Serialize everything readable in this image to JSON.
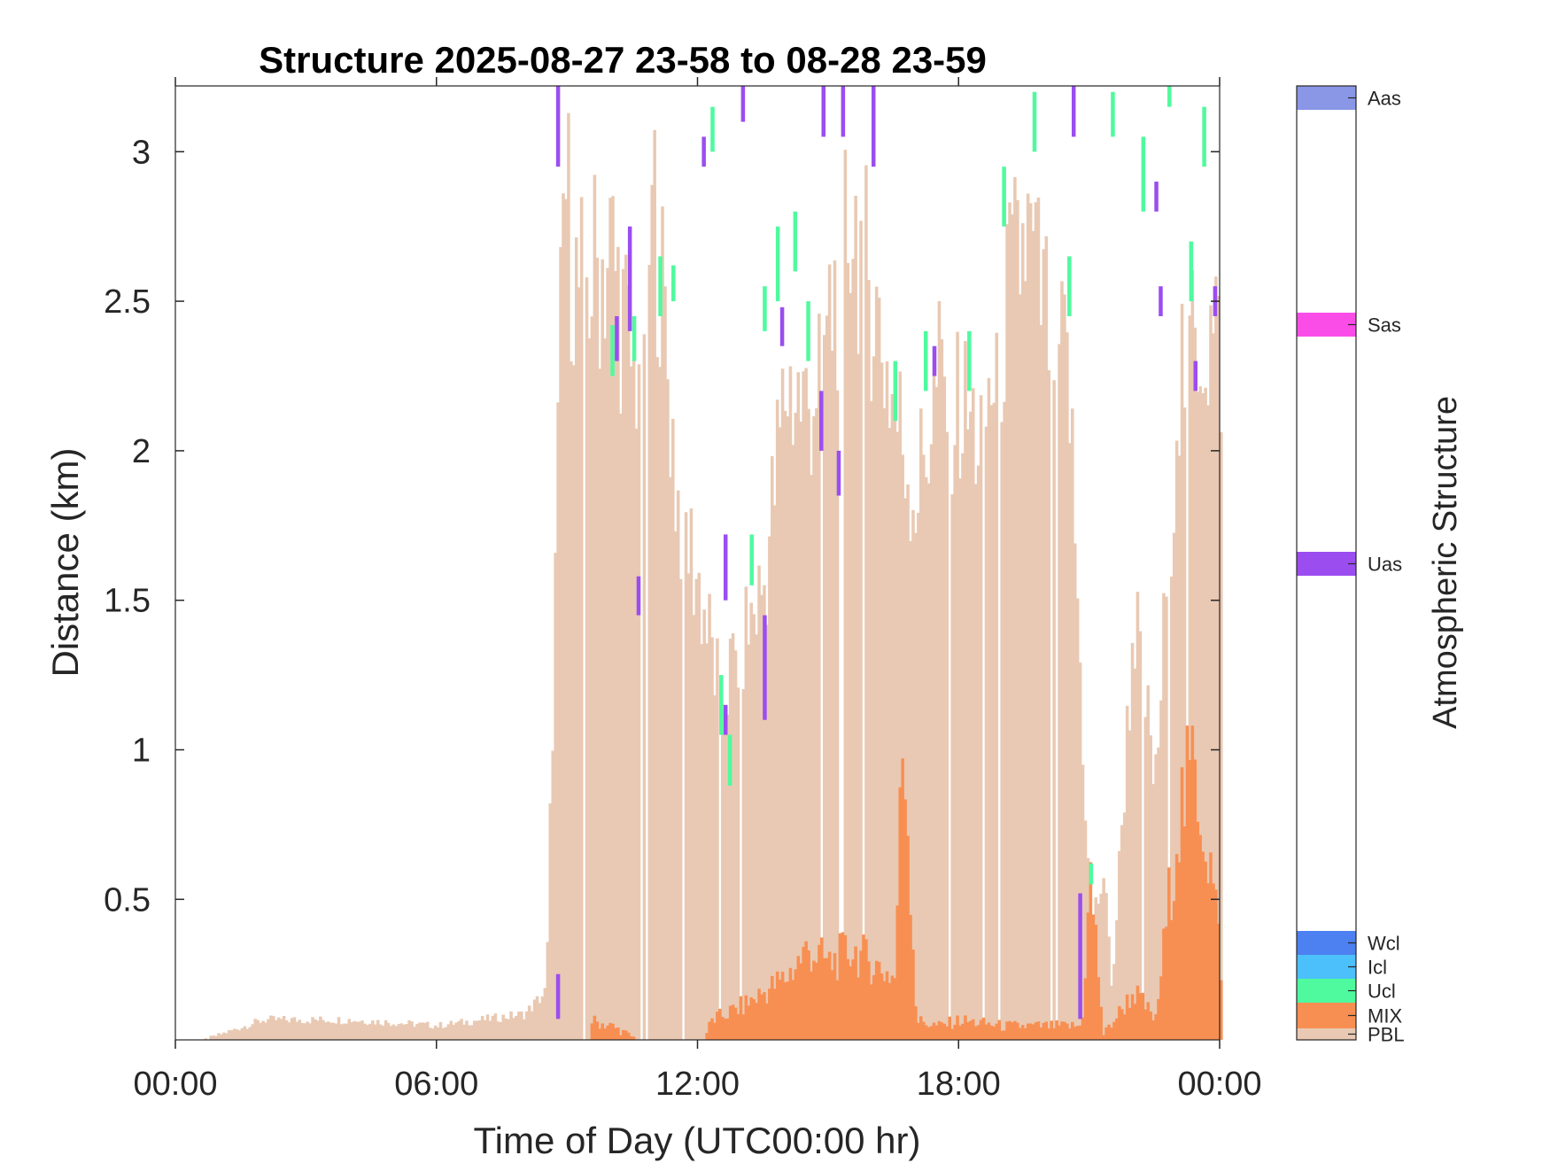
{
  "chart_data": {
    "type": "heatmap",
    "title": "Structure 2025-08-27 23-58 to 08-28 23-59",
    "xlabel": "Time of Day (UTC00:00 hr)",
    "ylabel": "Distance (km)",
    "xlim": [
      0,
      24
    ],
    "ylim": [
      0.03,
      3.22
    ],
    "x_ticks": [
      0,
      6,
      12,
      18,
      24
    ],
    "x_tick_labels": [
      "00:00",
      "06:00",
      "12:00",
      "18:00",
      "00:00"
    ],
    "y_ticks": [
      0.5,
      1,
      1.5,
      2,
      2.5,
      3
    ],
    "y_tick_labels": [
      "0.5",
      "1",
      "1.5",
      "2",
      "2.5",
      "3"
    ],
    "colorbar": {
      "title": "Atmospheric Structure",
      "classes": [
        {
          "label": "PBL",
          "color": "#e9c9b3"
        },
        {
          "label": "MIX",
          "color": "#f88f52"
        },
        {
          "label": "Ucl",
          "color": "#4ffa9e"
        },
        {
          "label": "Icl",
          "color": "#4cc0fa"
        },
        {
          "label": "Wcl",
          "color": "#4d80f0"
        },
        {
          "label": "Uas",
          "color": "#9b4df0"
        },
        {
          "label": "Sas",
          "color": "#fa4de8"
        },
        {
          "label": "Aas",
          "color": "#8a96e6"
        }
      ]
    },
    "pbl_top_km": [
      [
        0.0,
        0.0
      ],
      [
        2.0,
        0.1
      ],
      [
        4.0,
        0.1
      ],
      [
        6.0,
        0.08
      ],
      [
        7.0,
        0.1
      ],
      [
        8.0,
        0.12
      ],
      [
        8.5,
        0.2
      ],
      [
        8.9,
        3.0
      ],
      [
        9.2,
        2.6
      ],
      [
        10.0,
        2.75
      ],
      [
        10.5,
        2.3
      ],
      [
        11.0,
        2.9
      ],
      [
        11.5,
        1.9
      ],
      [
        12.0,
        1.6
      ],
      [
        12.5,
        1.2
      ],
      [
        13.0,
        1.4
      ],
      [
        13.5,
        1.6
      ],
      [
        14.0,
        2.3
      ],
      [
        14.5,
        2.2
      ],
      [
        15.0,
        2.5
      ],
      [
        15.5,
        2.9
      ],
      [
        16.0,
        2.6
      ],
      [
        16.5,
        2.2
      ],
      [
        17.0,
        1.9
      ],
      [
        17.5,
        2.3
      ],
      [
        18.0,
        2.2
      ],
      [
        18.5,
        2.1
      ],
      [
        19.0,
        2.5
      ],
      [
        19.5,
        2.8
      ],
      [
        20.0,
        2.5
      ],
      [
        20.5,
        2.3
      ],
      [
        21.0,
        0.4
      ],
      [
        21.3,
        0.6
      ],
      [
        21.5,
        0.2
      ],
      [
        22.0,
        1.5
      ],
      [
        22.5,
        0.9
      ],
      [
        23.0,
        2.3
      ],
      [
        23.5,
        2.5
      ],
      [
        24.0,
        2.4
      ]
    ],
    "mix_top_km": [
      [
        9.5,
        0.1
      ],
      [
        10.0,
        0.08
      ],
      [
        11.0,
        0.0
      ],
      [
        12.0,
        0.0
      ],
      [
        12.3,
        0.1
      ],
      [
        13.0,
        0.15
      ],
      [
        13.5,
        0.2
      ],
      [
        14.0,
        0.25
      ],
      [
        14.5,
        0.35
      ],
      [
        15.0,
        0.3
      ],
      [
        15.5,
        0.35
      ],
      [
        16.0,
        0.3
      ],
      [
        16.5,
        0.25
      ],
      [
        16.7,
        1.15
      ],
      [
        17.0,
        0.1
      ],
      [
        17.5,
        0.08
      ],
      [
        18.0,
        0.1
      ],
      [
        19.0,
        0.08
      ],
      [
        20.0,
        0.08
      ],
      [
        20.8,
        0.08
      ],
      [
        21.0,
        0.6
      ],
      [
        21.3,
        0.05
      ],
      [
        22.0,
        0.2
      ],
      [
        22.5,
        0.1
      ],
      [
        23.0,
        0.8
      ],
      [
        23.4,
        1.0
      ],
      [
        23.8,
        0.6
      ],
      [
        24.0,
        0.3
      ]
    ],
    "cloud_segments": [
      {
        "class": "Ucl",
        "x": 10.0,
        "y0": 2.25,
        "y1": 2.42
      },
      {
        "class": "Ucl",
        "x": 10.5,
        "y0": 2.3,
        "y1": 2.45
      },
      {
        "class": "Ucl",
        "x": 11.1,
        "y0": 2.45,
        "y1": 2.65
      },
      {
        "class": "Ucl",
        "x": 11.4,
        "y0": 2.5,
        "y1": 2.62
      },
      {
        "class": "Ucl",
        "x": 12.3,
        "y0": 3.0,
        "y1": 3.15
      },
      {
        "class": "Ucl",
        "x": 12.5,
        "y0": 1.05,
        "y1": 1.25
      },
      {
        "class": "Ucl",
        "x": 12.7,
        "y0": 0.88,
        "y1": 1.05
      },
      {
        "class": "Ucl",
        "x": 13.2,
        "y0": 1.55,
        "y1": 1.72
      },
      {
        "class": "Ucl",
        "x": 13.5,
        "y0": 2.4,
        "y1": 2.55
      },
      {
        "class": "Ucl",
        "x": 13.8,
        "y0": 2.5,
        "y1": 2.75
      },
      {
        "class": "Ucl",
        "x": 14.2,
        "y0": 2.6,
        "y1": 2.8
      },
      {
        "class": "Ucl",
        "x": 14.5,
        "y0": 2.3,
        "y1": 2.5
      },
      {
        "class": "Ucl",
        "x": 16.5,
        "y0": 2.1,
        "y1": 2.3
      },
      {
        "class": "Ucl",
        "x": 17.2,
        "y0": 2.2,
        "y1": 2.4
      },
      {
        "class": "Ucl",
        "x": 18.2,
        "y0": 2.2,
        "y1": 2.4
      },
      {
        "class": "Ucl",
        "x": 19.0,
        "y0": 2.75,
        "y1": 2.95
      },
      {
        "class": "Ucl",
        "x": 19.7,
        "y0": 3.0,
        "y1": 3.2
      },
      {
        "class": "Ucl",
        "x": 20.5,
        "y0": 2.45,
        "y1": 2.65
      },
      {
        "class": "Ucl",
        "x": 21.0,
        "y0": 0.55,
        "y1": 0.62
      },
      {
        "class": "Ucl",
        "x": 21.5,
        "y0": 3.05,
        "y1": 3.2
      },
      {
        "class": "Ucl",
        "x": 22.2,
        "y0": 2.8,
        "y1": 3.05
      },
      {
        "class": "Ucl",
        "x": 22.8,
        "y0": 3.15,
        "y1": 3.22
      },
      {
        "class": "Ucl",
        "x": 23.3,
        "y0": 2.5,
        "y1": 2.7
      },
      {
        "class": "Ucl",
        "x": 23.6,
        "y0": 2.95,
        "y1": 3.15
      },
      {
        "class": "Uas",
        "x": 8.75,
        "y0": 2.95,
        "y1": 3.22
      },
      {
        "class": "Uas",
        "x": 8.75,
        "y0": 0.1,
        "y1": 0.25
      },
      {
        "class": "Uas",
        "x": 10.1,
        "y0": 2.3,
        "y1": 2.45
      },
      {
        "class": "Uas",
        "x": 10.4,
        "y0": 2.4,
        "y1": 2.75
      },
      {
        "class": "Uas",
        "x": 10.6,
        "y0": 1.45,
        "y1": 1.58
      },
      {
        "class": "Uas",
        "x": 12.1,
        "y0": 2.95,
        "y1": 3.05
      },
      {
        "class": "Uas",
        "x": 12.6,
        "y0": 1.5,
        "y1": 1.72
      },
      {
        "class": "Uas",
        "x": 12.6,
        "y0": 1.05,
        "y1": 1.15
      },
      {
        "class": "Uas",
        "x": 13.0,
        "y0": 3.1,
        "y1": 3.22
      },
      {
        "class": "Uas",
        "x": 13.5,
        "y0": 1.1,
        "y1": 1.45
      },
      {
        "class": "Uas",
        "x": 13.9,
        "y0": 2.35,
        "y1": 2.48
      },
      {
        "class": "Uas",
        "x": 14.8,
        "y0": 2.0,
        "y1": 2.2
      },
      {
        "class": "Uas",
        "x": 14.85,
        "y0": 3.05,
        "y1": 3.22
      },
      {
        "class": "Uas",
        "x": 15.2,
        "y0": 1.85,
        "y1": 2.0
      },
      {
        "class": "Uas",
        "x": 15.3,
        "y0": 3.05,
        "y1": 3.22
      },
      {
        "class": "Uas",
        "x": 16.0,
        "y0": 2.95,
        "y1": 3.22
      },
      {
        "class": "Uas",
        "x": 17.4,
        "y0": 2.25,
        "y1": 2.35
      },
      {
        "class": "Uas",
        "x": 20.6,
        "y0": 3.05,
        "y1": 3.22
      },
      {
        "class": "Uas",
        "x": 20.75,
        "y0": 0.1,
        "y1": 0.52
      },
      {
        "class": "Uas",
        "x": 22.5,
        "y0": 2.8,
        "y1": 2.9
      },
      {
        "class": "Uas",
        "x": 22.6,
        "y0": 2.45,
        "y1": 2.55
      },
      {
        "class": "Uas",
        "x": 23.4,
        "y0": 2.2,
        "y1": 2.3
      },
      {
        "class": "Uas",
        "x": 23.85,
        "y0": 2.45,
        "y1": 2.55
      }
    ]
  }
}
